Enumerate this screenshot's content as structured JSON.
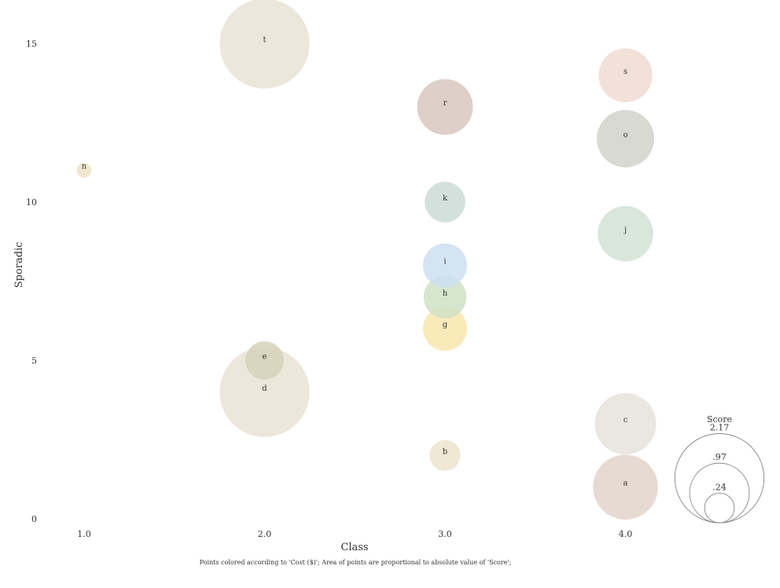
{
  "chart_data": {
    "type": "scatter",
    "xlabel": "Class",
    "ylabel": "Sporadic",
    "xlim": [
      0.85,
      4.85
    ],
    "ylim": [
      0,
      16.2
    ],
    "x_ticks": [
      {
        "value": 1.0,
        "label": "1.0"
      },
      {
        "value": 2.0,
        "label": "2.0"
      },
      {
        "value": 3.0,
        "label": "3.0"
      },
      {
        "value": 4.0,
        "label": "4.0"
      }
    ],
    "y_ticks": [
      {
        "value": 0,
        "label": "0"
      },
      {
        "value": 5,
        "label": "5"
      },
      {
        "value": 10,
        "label": "10"
      },
      {
        "value": 15,
        "label": "15"
      }
    ],
    "points": [
      {
        "label": "a",
        "x": 4.0,
        "y": 1,
        "score": 1.15,
        "color": "#e3d3ca"
      },
      {
        "label": "b",
        "x": 3.0,
        "y": 2,
        "score": 0.26,
        "color": "#ebe4cc"
      },
      {
        "label": "c",
        "x": 4.0,
        "y": 3,
        "score": 1.03,
        "color": "#e6e3dc"
      },
      {
        "label": "d",
        "x": 2.0,
        "y": 4,
        "score": 2.2,
        "color": "#e9e3d5"
      },
      {
        "label": "e",
        "x": 2.0,
        "y": 5,
        "score": 0.4,
        "color": "#d6d1b8"
      },
      {
        "label": "g",
        "x": 3.0,
        "y": 6,
        "score": 0.53,
        "color": "#f8e6ae"
      },
      {
        "label": "h",
        "x": 3.0,
        "y": 7,
        "score": 0.5,
        "color": "#cfe0c4"
      },
      {
        "label": "i",
        "x": 3.0,
        "y": 8,
        "score": 0.53,
        "color": "#cddff0"
      },
      {
        "label": "j",
        "x": 4.0,
        "y": 9,
        "score": 0.84,
        "color": "#d2e2d6"
      },
      {
        "label": "k",
        "x": 3.0,
        "y": 10,
        "score": 0.45,
        "color": "#cbdcd7"
      },
      {
        "label": "n",
        "x": 1.0,
        "y": 11,
        "score": 0.06,
        "color": "#ede4c6"
      },
      {
        "label": "o",
        "x": 4.0,
        "y": 12,
        "score": 0.9,
        "color": "#d2d2cd"
      },
      {
        "label": "r",
        "x": 3.0,
        "y": 13,
        "score": 0.85,
        "color": "#d8c8c0"
      },
      {
        "label": "s",
        "x": 4.0,
        "y": 14,
        "score": 0.79,
        "color": "#efdcd2"
      },
      {
        "label": "t",
        "x": 2.0,
        "y": 15,
        "score": 2.2,
        "color": "#e9e3d5"
      }
    ],
    "legend": {
      "title": "Score",
      "position": "bottom-right",
      "entries": [
        {
          "label": "2.17",
          "value": 2.17
        },
        {
          "label": ".97",
          "value": 0.97
        },
        {
          "label": ".24",
          "value": 0.24
        }
      ]
    },
    "caption": "Points colored according to 'Cost ($)'; Area of points are proportional to absolute value of 'Score';"
  }
}
